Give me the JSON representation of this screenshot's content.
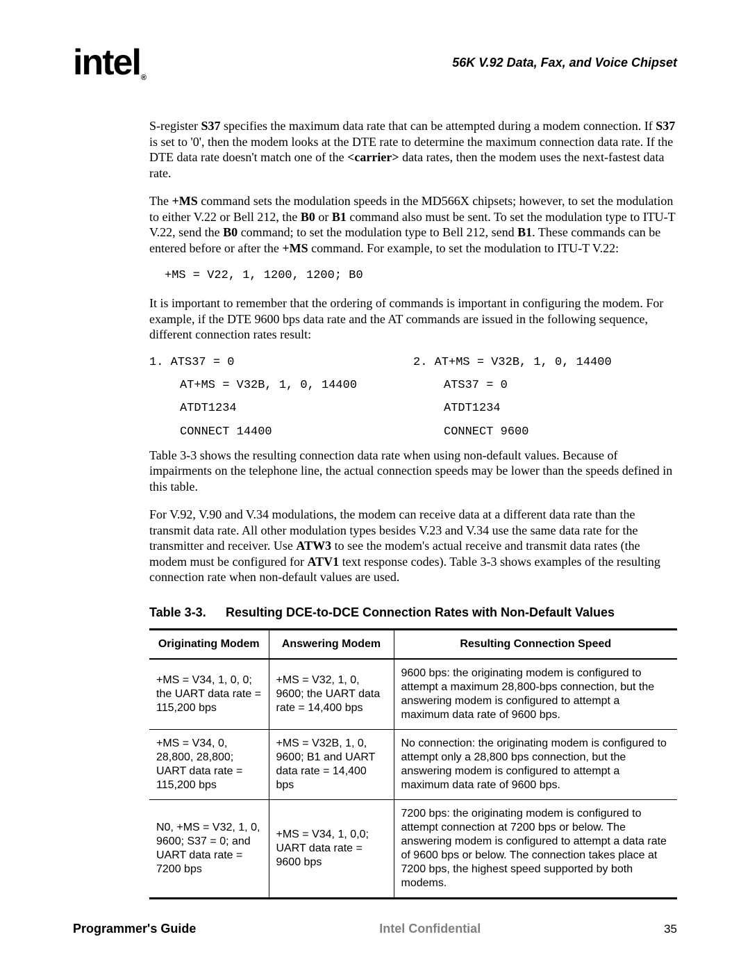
{
  "logo": {
    "text": "intel",
    "reg": "®"
  },
  "header_title": "56K V.92 Data, Fax, and Voice Chipset",
  "body": {
    "p1_a": "S-register ",
    "p1_b": "S37",
    "p1_c": " specifies the maximum data rate that can be attempted during a modem connection. If ",
    "p1_d": "S37",
    "p1_e": " is set to '0', then the modem looks at the DTE rate to determine the maximum connection data rate. If the DTE data rate doesn't match one of the ",
    "p1_f": "<carrier>",
    "p1_g": " data rates, then the modem uses the next-fastest data rate.",
    "p2_a": "The ",
    "p2_b": "+MS",
    "p2_c": " command sets the modulation speeds in the MD566X chipsets; however, to set the modulation to either V.22 or Bell 212, the ",
    "p2_d": "B0",
    "p2_e": " or ",
    "p2_f": "B1",
    "p2_g": " command also must be sent. To set the modulation type to ITU-T V.22, send the ",
    "p2_h": "B0",
    "p2_i": " command; to set the modulation type to Bell 212, send ",
    "p2_j": "B1",
    "p2_k": ". These commands can be entered before or after the ",
    "p2_l": "+MS",
    "p2_m": " command. For example, to set the modulation to ITU-T V.22:",
    "code1": "+MS = V22, 1, 1200, 1200; B0",
    "p3": "It is important to remember that the ordering of commands is important in configuring the modem. For example, if the DTE 9600 bps data rate and the AT commands are issued in the following sequence, different connection rates result:",
    "seq": {
      "left": {
        "l1": "1. ATS37 = 0",
        "l2": "AT+MS = V32B, 1, 0, 14400",
        "l3": "ATDT1234",
        "l4": "CONNECT 14400"
      },
      "right": {
        "r1": "2. AT+MS = V32B, 1, 0, 14400",
        "r2": "ATS37 = 0",
        "r3": "ATDT1234",
        "r4": "CONNECT 9600"
      }
    },
    "p4": "Table 3-3 shows the resulting connection data rate when using non-default values. Because of impairments on the telephone line, the actual connection speeds may be lower than the speeds defined in this table.",
    "p5_a": "For V.92, V.90 and V.34 modulations, the modem can receive data at a different data rate than the transmit data rate. All other modulation types besides V.23 and V.34 use the same data rate for the transmitter and receiver. Use ",
    "p5_b": "ATW3",
    "p5_c": " to see the modem's actual receive and transmit data rates (the modem must be configured for ",
    "p5_d": "ATV1",
    "p5_e": " text response codes). Table 3-3 shows examples of the resulting connection rate when non-default values are used."
  },
  "table": {
    "number": "Table 3-3.",
    "title": "Resulting DCE-to-DCE Connection Rates with Non-Default Values",
    "columns": [
      "Originating Modem",
      "Answering Modem",
      "Resulting Connection Speed"
    ],
    "rows": [
      {
        "orig": "+MS = V34, 1, 0, 0; the UART data rate = 115,200 bps",
        "ans": "+MS = V32, 1, 0, 9600; the UART data rate = 14,400 bps",
        "result": "9600 bps: the originating modem is configured to attempt a maximum 28,800-bps connection, but the answering modem is configured to attempt a maximum data rate of 9600 bps."
      },
      {
        "orig": "+MS = V34, 0, 28,800, 28,800; UART data rate = 115,200 bps",
        "ans": "+MS = V32B, 1, 0, 9600; B1 and UART data rate = 14,400 bps",
        "result": "No connection: the originating modem is configured to attempt only a 28,800 bps connection, but the answering modem is configured to attempt a maximum data rate of 9600 bps."
      },
      {
        "orig": "N0, +MS = V32, 1, 0, 9600; S37 = 0; and UART data rate = 7200 bps",
        "ans": "+MS = V34, 1, 0,0; UART data rate = 9600 bps",
        "result": "7200 bps: the originating modem is configured to attempt connection at 7200 bps or below. The answering modem is configured to attempt a data rate of 9600 bps or below. The connection takes place at 7200 bps, the highest speed supported by both modems."
      }
    ]
  },
  "footer": {
    "guide": "Programmer's Guide",
    "conf": "Intel Confidential",
    "page": "35"
  }
}
